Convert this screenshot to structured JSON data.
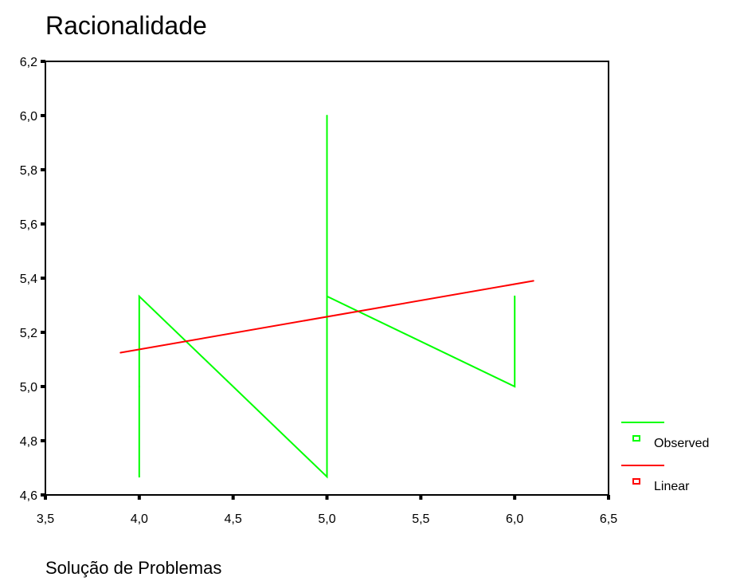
{
  "chart_data": {
    "type": "line",
    "title": "Racionalidade",
    "xlabel": "Solução de Problemas",
    "ylabel": "",
    "xlim": [
      3.5,
      6.5
    ],
    "ylim": [
      4.6,
      6.2
    ],
    "x_ticks": [
      3.5,
      4.0,
      4.5,
      5.0,
      5.5,
      6.0,
      6.5
    ],
    "y_ticks": [
      4.6,
      4.8,
      5.0,
      5.2,
      5.4,
      5.6,
      5.8,
      6.0,
      6.2
    ],
    "x_tick_labels": [
      "3,5",
      "4,0",
      "4,5",
      "5,0",
      "5,5",
      "6,0",
      "6,5"
    ],
    "y_tick_labels": [
      "4,6",
      "4,8",
      "5,0",
      "5,2",
      "5,4",
      "5,6",
      "5,8",
      "6,0",
      "6,2"
    ],
    "grid": false,
    "legend_position": "right",
    "series": [
      {
        "name": "Observed",
        "color": "#00ff00",
        "x": [
          4.0,
          4.0,
          4.0,
          5.0,
          5.0,
          5.0,
          6.0,
          6.0
        ],
        "y": [
          4.667,
          5.0,
          5.333,
          4.667,
          6.0,
          5.333,
          5.0,
          5.333
        ]
      },
      {
        "name": "Linear",
        "color": "#ff0000",
        "x": [
          3.9,
          6.1
        ],
        "y": [
          5.125,
          5.39
        ]
      }
    ]
  }
}
